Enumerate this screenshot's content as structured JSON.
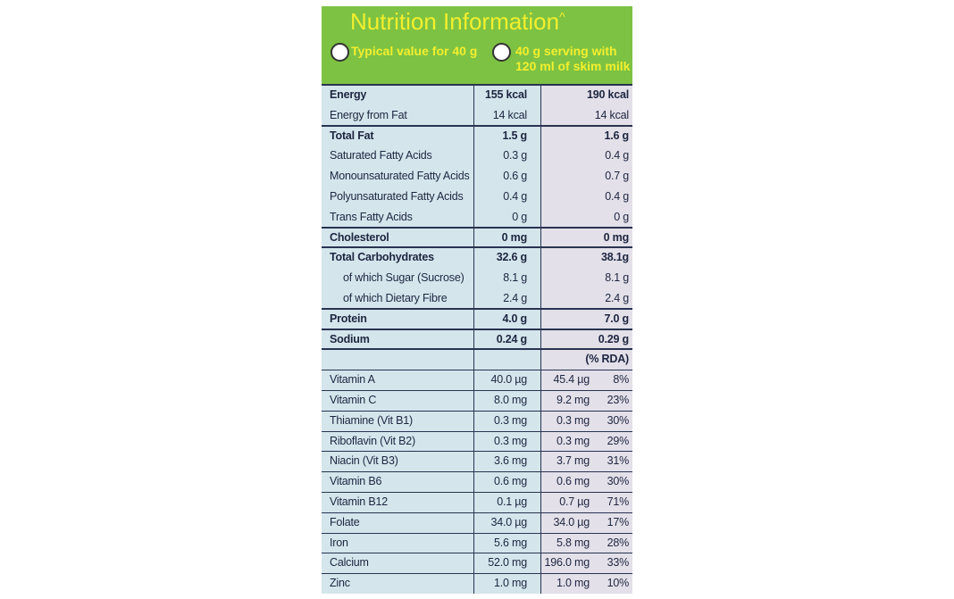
{
  "header": {
    "title": "Nutrition Information",
    "title_mark": "^",
    "options": [
      [
        "Typical value for 40 g"
      ],
      [
        "40 g serving with",
        "120 ml of skim milk"
      ]
    ]
  },
  "table": {
    "nutrients": [
      [
        "Energy",
        "155 kcal",
        "190 kcal"
      ],
      [
        "Energy from Fat",
        "14 kcal",
        "14 kcal"
      ],
      [
        "Total Fat",
        "1.5 g",
        "1.6 g"
      ],
      [
        "Saturated Fatty Acids",
        "0.3 g",
        "0.4 g"
      ],
      [
        "Monounsaturated Fatty Acids",
        "0.6 g",
        "0.7 g"
      ],
      [
        "Polyunsaturated Fatty Acids",
        "0.4 g",
        "0.4 g"
      ],
      [
        "Trans Fatty Acids",
        "0 g",
        "0 g"
      ],
      [
        "Cholesterol",
        "0 mg",
        "0 mg"
      ],
      [
        "Total Carbohydrates",
        "32.6 g",
        "38.1g"
      ],
      [
        "of which Sugar (Sucrose)",
        "8.1 g",
        "8.1 g"
      ],
      [
        "of which Dietary Fibre",
        "2.4 g",
        "2.4 g"
      ],
      [
        "Protein",
        "4.0 g",
        "7.0 g"
      ],
      [
        "Sodium",
        "0.24 g",
        "0.29 g"
      ]
    ],
    "rda_header": "(% RDA)",
    "vitamins": [
      [
        "Vitamin A",
        "40.0 µg",
        "45.4 µg",
        "8%"
      ],
      [
        "Vitamin C",
        "8.0 mg",
        "9.2 mg",
        "23%"
      ],
      [
        "Thiamine (Vit B1)",
        "0.3 mg",
        "0.3 mg",
        "30%"
      ],
      [
        "Riboflavin (Vit B2)",
        "0.3 mg",
        "0.3 mg",
        "29%"
      ],
      [
        "Niacin (Vit B3)",
        "3.6 mg",
        "3.7 mg",
        "31%"
      ],
      [
        "Vitamin B6",
        "0.6 mg",
        "0.6 mg",
        "30%"
      ],
      [
        "Vitamin B12",
        "0.1 µg",
        "0.7 µg",
        "71%"
      ],
      [
        "Folate",
        "34.0 µg",
        "34.0 µg",
        "17%"
      ],
      [
        "Iron",
        "5.6 mg",
        "5.8 mg",
        "28%"
      ],
      [
        "Calcium",
        "52.0 mg",
        "196.0 mg",
        "33%"
      ],
      [
        "Zinc",
        "1.0 mg",
        "1.0 mg",
        "10%"
      ]
    ]
  }
}
